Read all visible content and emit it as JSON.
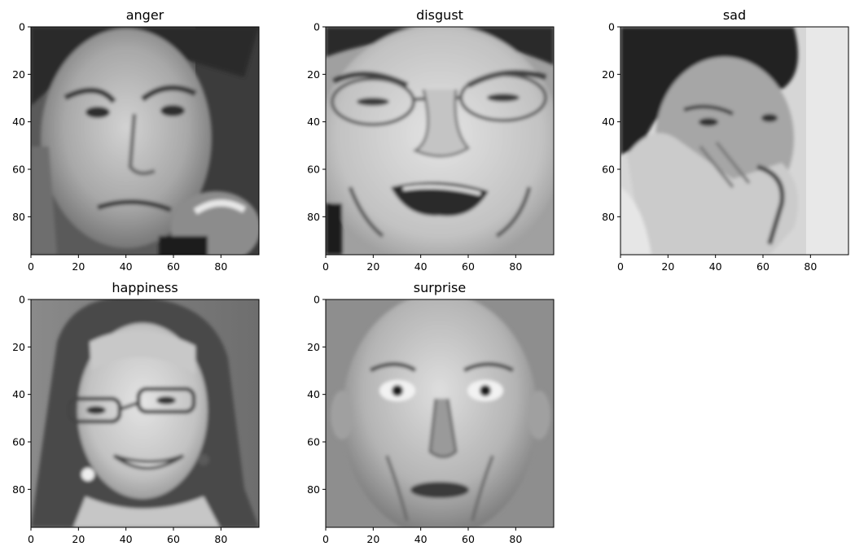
{
  "figure": {
    "background": "#ffffff",
    "colormap": "grayscale"
  },
  "chart_data": [
    {
      "type": "heatmap",
      "title": "anger",
      "image_content": "grayscale face photo: man with furrowed brows, hand raised near chin",
      "xlim": [
        0,
        96
      ],
      "ylim": [
        96,
        0
      ],
      "xticks": [
        0,
        20,
        40,
        60,
        80
      ],
      "yticks": [
        0,
        20,
        40,
        60,
        80
      ],
      "xlabel": "",
      "ylabel": "",
      "grid": false
    },
    {
      "type": "heatmap",
      "title": "disgust",
      "image_content": "grayscale face photo: woman with glasses, wrinkled nose, grimace",
      "xlim": [
        0,
        96
      ],
      "ylim": [
        96,
        0
      ],
      "xticks": [
        0,
        20,
        40,
        60,
        80
      ],
      "yticks": [
        0,
        20,
        40,
        60,
        80
      ],
      "xlabel": "",
      "ylabel": "",
      "grid": false
    },
    {
      "type": "heatmap",
      "title": "sad",
      "image_content": "grayscale photo: child with dark hair, hand covering mouth",
      "xlim": [
        0,
        96
      ],
      "ylim": [
        96,
        0
      ],
      "xticks": [
        0,
        20,
        40,
        60,
        80
      ],
      "yticks": [
        0,
        20,
        40,
        60,
        80
      ],
      "xlabel": "",
      "ylabel": "",
      "grid": false
    },
    {
      "type": "heatmap",
      "title": "happiness",
      "image_content": "grayscale face photo: smiling woman with glasses and long hair",
      "xlim": [
        0,
        96
      ],
      "ylim": [
        96,
        0
      ],
      "xticks": [
        0,
        20,
        40,
        60,
        80
      ],
      "yticks": [
        0,
        20,
        40,
        60,
        80
      ],
      "xlabel": "",
      "ylabel": "",
      "grid": false
    },
    {
      "type": "heatmap",
      "title": "surprise",
      "image_content": "grayscale face photo: bald man with wide open eyes",
      "xlim": [
        0,
        96
      ],
      "ylim": [
        96,
        0
      ],
      "xticks": [
        0,
        20,
        40,
        60,
        80
      ],
      "yticks": [
        0,
        20,
        40,
        60,
        80
      ],
      "xlabel": "",
      "ylabel": "",
      "grid": false
    }
  ]
}
